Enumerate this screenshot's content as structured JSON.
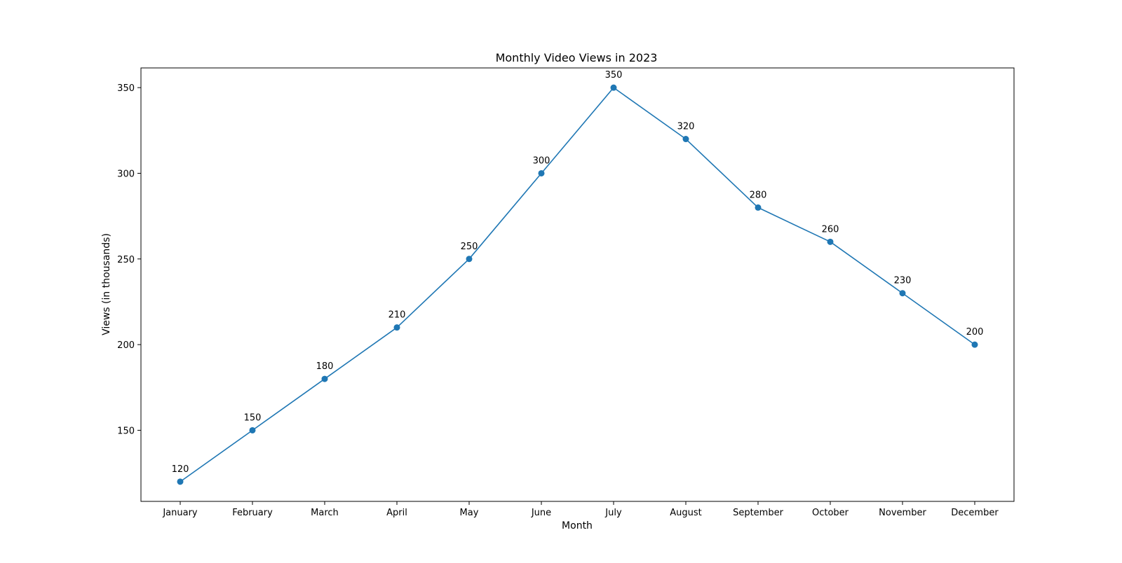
{
  "chart_data": {
    "type": "line",
    "title": "Monthly Video Views in 2023",
    "xlabel": "Month",
    "ylabel": "Views (in thousands)",
    "categories": [
      "January",
      "February",
      "March",
      "April",
      "May",
      "June",
      "July",
      "August",
      "September",
      "October",
      "November",
      "December"
    ],
    "series": [
      {
        "values": [
          120,
          150,
          180,
          210,
          250,
          300,
          350,
          320,
          280,
          260,
          230,
          200
        ],
        "color": "#1f77b4",
        "marker": "circle"
      }
    ],
    "ylim": [
      108.5,
      361.5
    ],
    "yticks": [
      150,
      200,
      250,
      300,
      350
    ],
    "grid": false,
    "legend": "none",
    "data_labels": true
  }
}
